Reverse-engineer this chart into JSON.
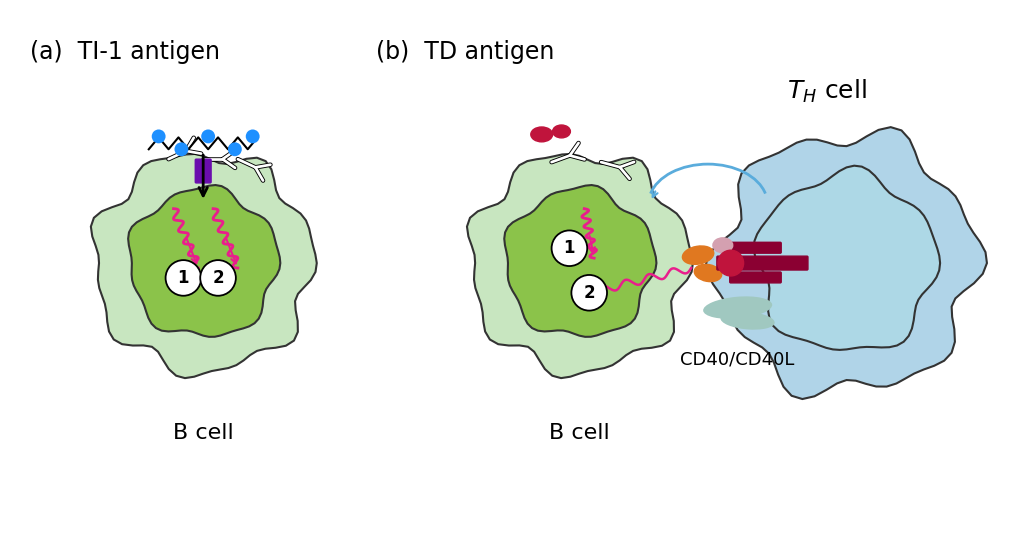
{
  "bg_color": "#ffffff",
  "label_a": "(a)  TI-1 antigen",
  "label_b": "(b)  TD antigen",
  "label_bcell_a": "B cell",
  "label_bcell_b": "B cell",
  "label_th": "T",
  "label_th_sub": "H",
  "label_th2": " cell",
  "label_cd40": "CD40/CD40L",
  "circle1_label": "1",
  "circle2_label": "2",
  "color_outer_cell": "#c8e6c0",
  "color_inner_nucleus": "#8bc34a",
  "color_outline": "#333333",
  "color_blue_dot": "#1e90ff",
  "color_purple": "#6a0dad",
  "color_pink_wave": "#e91e8c",
  "color_antibody": "#ffffff",
  "color_th_cell_outer": "#b0d4e8",
  "color_th_cell_inner": "#add8e6",
  "color_red_blob": "#c0143c",
  "color_orange": "#e07820",
  "color_dark_red": "#8b0032",
  "color_light_teal": "#a0c8c0",
  "font_size_label": 17,
  "font_size_number": 14,
  "font_size_cd40": 13,
  "font_size_bcell": 16,
  "font_size_th": 18
}
